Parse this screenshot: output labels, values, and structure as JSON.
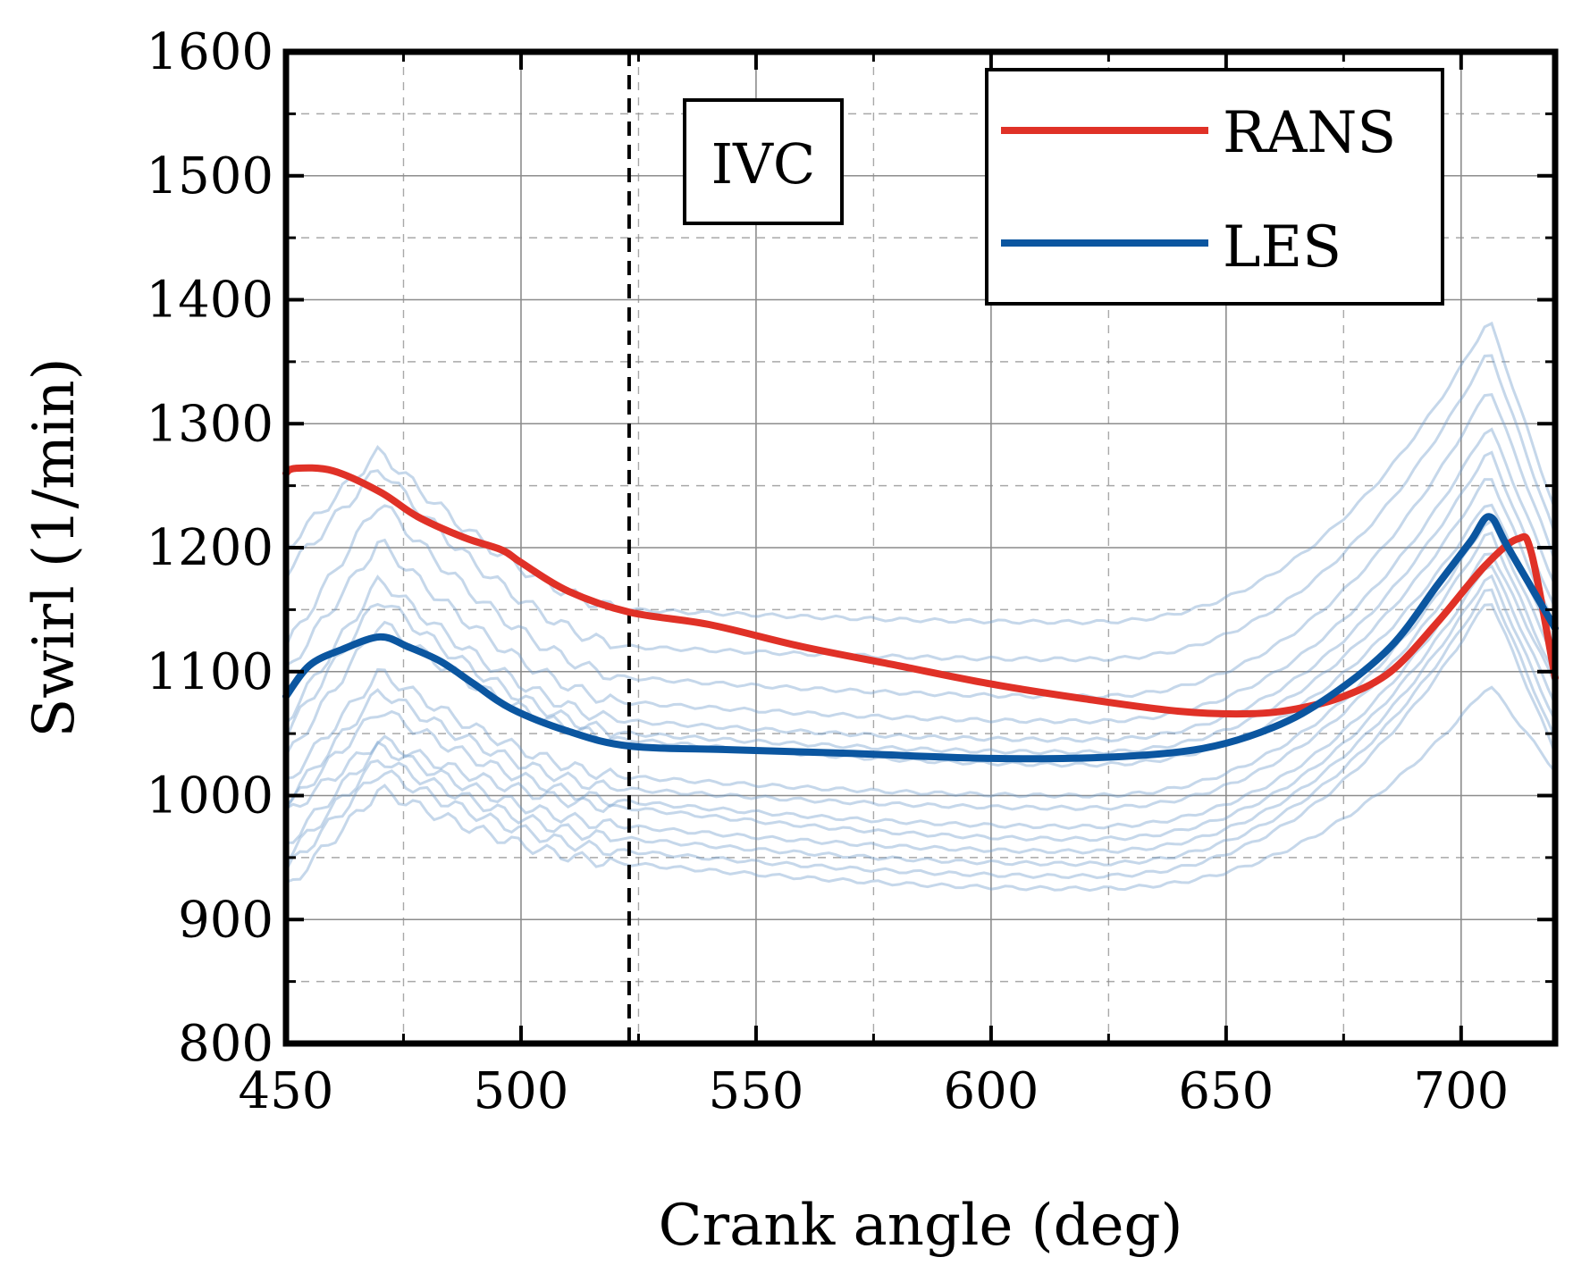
{
  "chart_data": {
    "type": "line",
    "xlabel": "Crank angle (deg)",
    "ylabel": "Swirl (1/min)",
    "xlim": [
      450,
      720
    ],
    "ylim": [
      800,
      1600
    ],
    "xticks": [
      450,
      500,
      550,
      600,
      650,
      700
    ],
    "xtick_labels": [
      "450",
      "500",
      "550",
      "600",
      "650",
      "700"
    ],
    "yticks": [
      800,
      900,
      1000,
      1100,
      1200,
      1300,
      1400,
      1500,
      1600
    ],
    "ytick_labels": [
      "800",
      "900",
      "1000",
      "1100",
      "1200",
      "1300",
      "1400",
      "1500",
      "1600"
    ],
    "grid": true,
    "legend_position": "top-right",
    "annotations": [
      {
        "text": "IVC",
        "x": 523
      }
    ],
    "series": [
      {
        "name": "RANS",
        "color": "#e03127",
        "x": [
          450,
          452,
          460,
          470,
          478,
          488,
          496,
          500,
          510,
          523,
          540,
          560,
          580,
          600,
          620,
          640,
          655,
          665,
          675,
          685,
          695,
          705,
          712,
          715,
          720
        ],
        "y": [
          1260,
          1264,
          1262,
          1245,
          1225,
          1208,
          1198,
          1188,
          1165,
          1148,
          1138,
          1120,
          1105,
          1090,
          1078,
          1068,
          1066,
          1070,
          1080,
          1100,
          1140,
          1185,
          1207,
          1195,
          1095
        ]
      },
      {
        "name": "LES",
        "color": "#0b56a0",
        "x": [
          450,
          455,
          462,
          470,
          476,
          483,
          490,
          498,
          510,
          523,
          545,
          570,
          600,
          625,
          645,
          660,
          672,
          685,
          695,
          702,
          706,
          710,
          720
        ],
        "y": [
          1080,
          1105,
          1118,
          1128,
          1120,
          1108,
          1090,
          1070,
          1052,
          1040,
          1037,
          1034,
          1030,
          1031,
          1038,
          1055,
          1080,
          1120,
          1170,
          1205,
          1225,
          1200,
          1135
        ]
      }
    ],
    "les_cycles": [
      {
        "start": 1200,
        "peak": 1278,
        "plateau": 1150,
        "min": 1140,
        "end_peak": 1385,
        "end": 1230
      },
      {
        "start": 1180,
        "peak": 1265,
        "plateau": 1120,
        "min": 1110,
        "end_peak": 1360,
        "end": 1210
      },
      {
        "start": 1120,
        "peak": 1238,
        "plateau": 1095,
        "min": 1080,
        "end_peak": 1330,
        "end": 1190
      },
      {
        "start": 1100,
        "peak": 1205,
        "plateau": 1075,
        "min": 1060,
        "end_peak": 1300,
        "end": 1170
      },
      {
        "start": 1060,
        "peak": 1175,
        "plateau": 1060,
        "min": 1045,
        "end_peak": 1280,
        "end": 1150
      },
      {
        "start": 1050,
        "peak": 1160,
        "plateau": 1050,
        "min": 1035,
        "end_peak": 1260,
        "end": 1135
      },
      {
        "start": 1030,
        "peak": 1140,
        "plateau": 1045,
        "min": 1025,
        "end_peak": 1240,
        "end": 1120
      },
      {
        "start": 1010,
        "peak": 1100,
        "plateau": 1015,
        "min": 1000,
        "end_peak": 1225,
        "end": 1110
      },
      {
        "start": 995,
        "peak": 1085,
        "plateau": 1005,
        "min": 990,
        "end_peak": 1215,
        "end": 1095
      },
      {
        "start": 990,
        "peak": 1070,
        "plateau": 995,
        "min": 975,
        "end_peak": 1200,
        "end": 1090
      },
      {
        "start": 985,
        "peak": 1045,
        "plateau": 990,
        "min": 965,
        "end_peak": 1190,
        "end": 1075
      },
      {
        "start": 960,
        "peak": 1040,
        "plateau": 975,
        "min": 955,
        "end_peak": 1180,
        "end": 1060
      },
      {
        "start": 950,
        "peak": 1030,
        "plateau": 965,
        "min": 945,
        "end_peak": 1170,
        "end": 1045
      },
      {
        "start": 940,
        "peak": 1020,
        "plateau": 955,
        "min": 935,
        "end_peak": 1160,
        "end": 1035
      },
      {
        "start": 925,
        "peak": 1005,
        "plateau": 945,
        "min": 925,
        "end_peak": 1090,
        "end": 1020
      }
    ],
    "colors": {
      "grid": "#8c8c8c",
      "cycles": "#6f9ccb",
      "ivc": "#000000"
    }
  }
}
